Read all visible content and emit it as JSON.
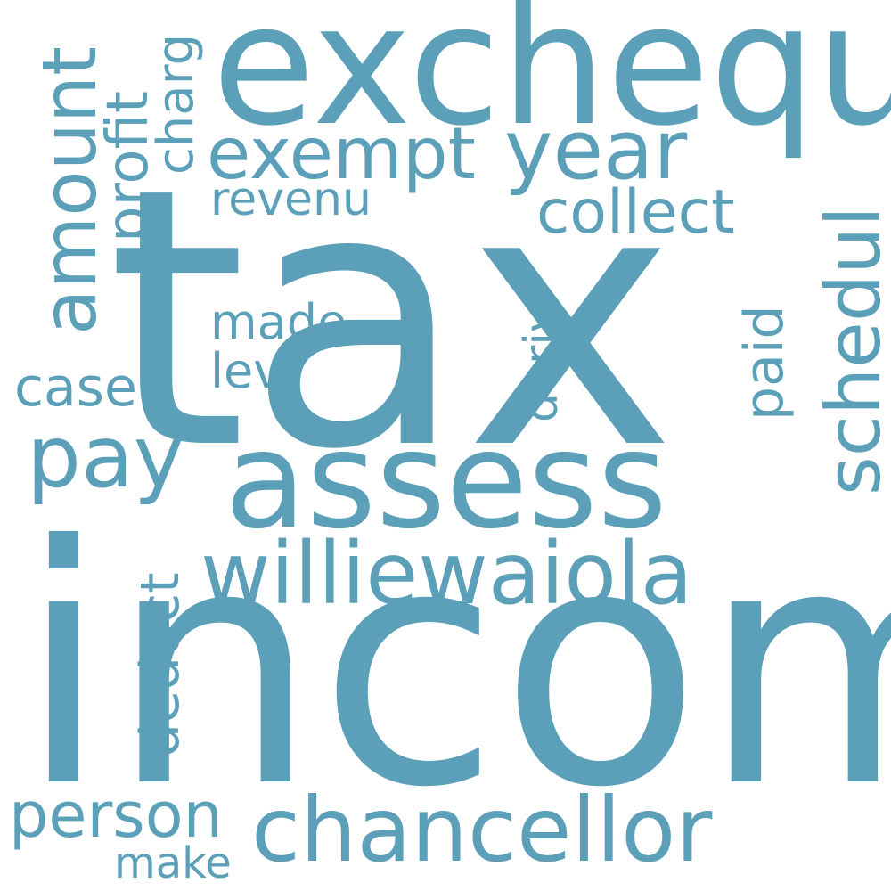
{
  "word_cloud": {
    "color": "#5ba0b8",
    "background": "#ffffff",
    "words": {
      "tax": "tax",
      "incom": "incom",
      "exchequ": "exchequ",
      "assess": "assess",
      "chancellor": "chancellor",
      "williewaiola": "williewaiola",
      "exempt": "exempt",
      "year": "year",
      "pay": "pay",
      "amount": "amount",
      "schedul": "schedul",
      "person": "person",
      "collect": "collect",
      "case": "case",
      "profit": "profit",
      "charg": "charg",
      "revenu": "revenu",
      "made": "made",
      "levi": "levi",
      "deduct": "deduct",
      "paid": "paid",
      "deriv": "deriv",
      "make": "make"
    }
  }
}
